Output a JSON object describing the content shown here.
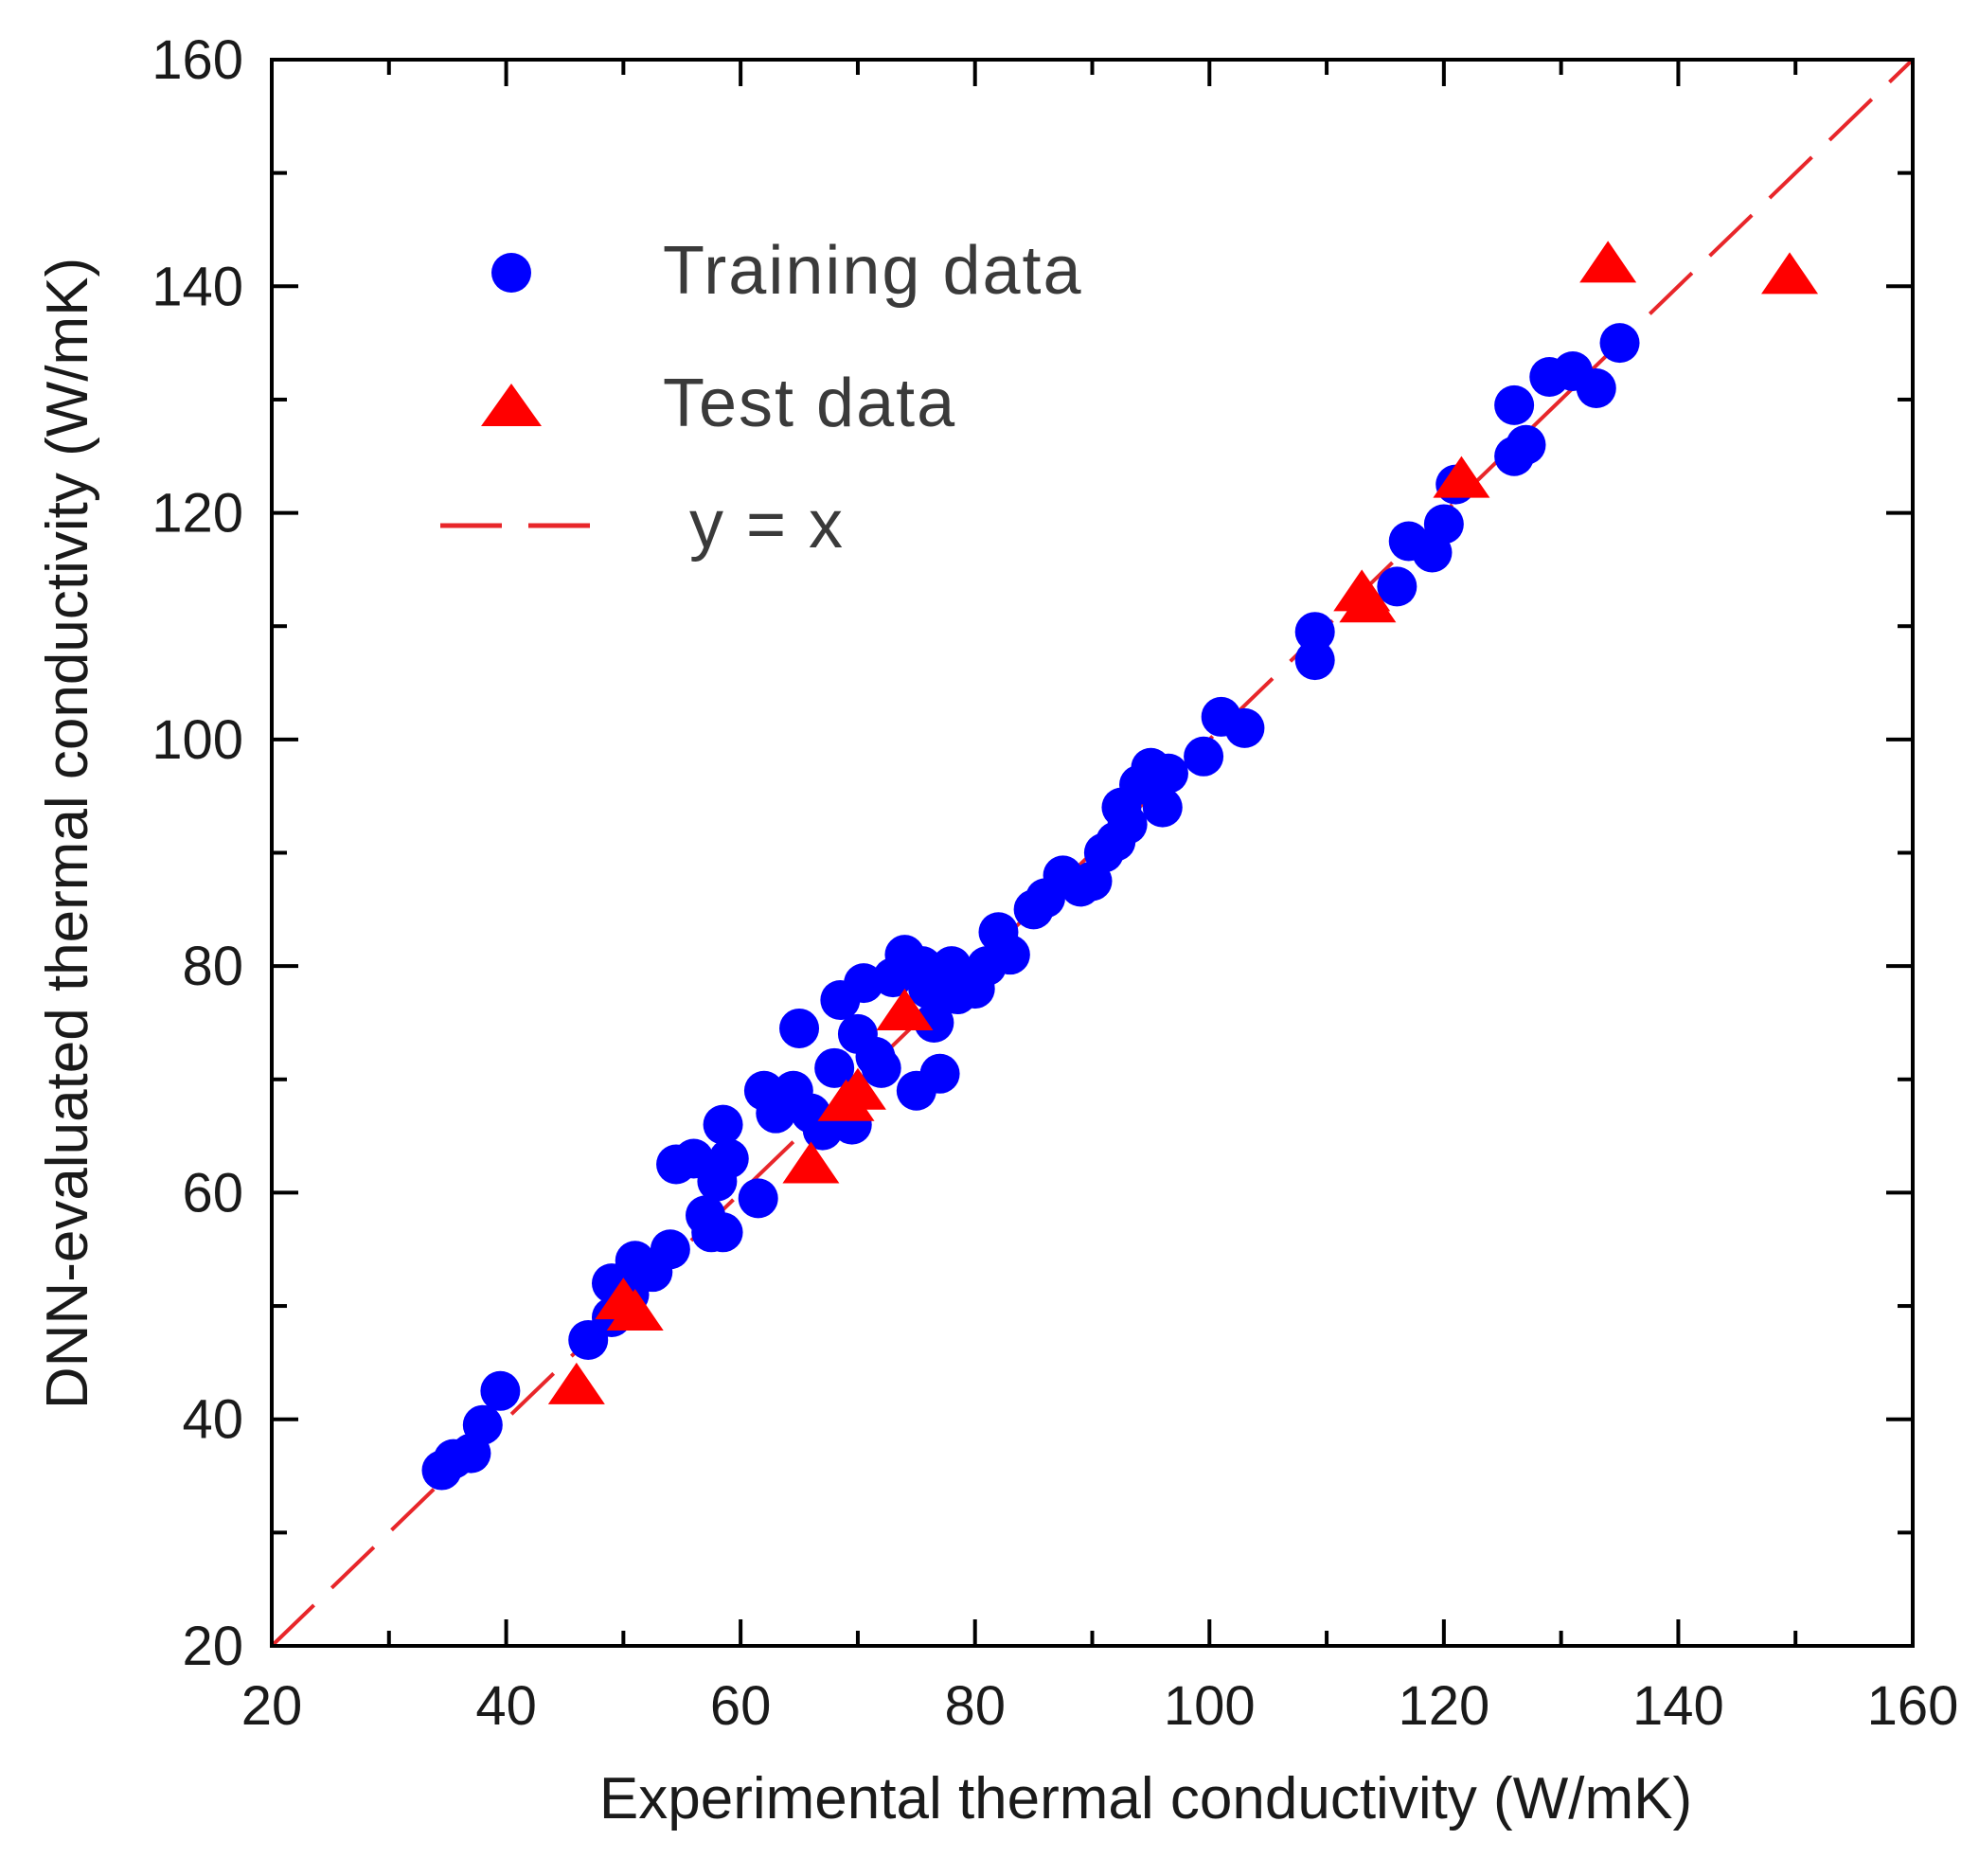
{
  "chart_data": {
    "type": "scatter",
    "xlabel": "Experimental thermal conductivity (W/mK)",
    "ylabel": "DNN-evaluated thermal conductivity (W/mK)",
    "xlim": [
      20,
      160
    ],
    "ylim": [
      20,
      160
    ],
    "x_ticks": [
      "20",
      "40",
      "60",
      "80",
      "100",
      "120",
      "140",
      "160"
    ],
    "y_ticks": [
      "20",
      "40",
      "60",
      "80",
      "100",
      "120",
      "140",
      "160"
    ],
    "grid": false,
    "legend_position": "top-left",
    "colors": {
      "training": "#0000ff",
      "test": "#ff0000",
      "reference": "#e8262a",
      "axis": "#000000"
    },
    "series": [
      {
        "name": "Training data",
        "marker": "circle",
        "points": [
          [
            34.5,
            35.5
          ],
          [
            35.5,
            36.5
          ],
          [
            37,
            37
          ],
          [
            38,
            39.5
          ],
          [
            39.5,
            42.5
          ],
          [
            47,
            47
          ],
          [
            49,
            49
          ],
          [
            49,
            52
          ],
          [
            50.5,
            51
          ],
          [
            51,
            54
          ],
          [
            52.5,
            53
          ],
          [
            54,
            55
          ],
          [
            54.5,
            62.5
          ],
          [
            56,
            63
          ],
          [
            57,
            58
          ],
          [
            57.5,
            56.5
          ],
          [
            58,
            61
          ],
          [
            58.5,
            56.5
          ],
          [
            58.5,
            66
          ],
          [
            59,
            63
          ],
          [
            61.5,
            59.5
          ],
          [
            62,
            69
          ],
          [
            63,
            67
          ],
          [
            64,
            68
          ],
          [
            64.5,
            69
          ],
          [
            65,
            74.5
          ],
          [
            66,
            67
          ],
          [
            67,
            65.5
          ],
          [
            68,
            71
          ],
          [
            68.5,
            77
          ],
          [
            69.5,
            66
          ],
          [
            70,
            74
          ],
          [
            70.5,
            78.5
          ],
          [
            71.5,
            72
          ],
          [
            72,
            71
          ],
          [
            73,
            79
          ],
          [
            74,
            81
          ],
          [
            75,
            69
          ],
          [
            75.5,
            80
          ],
          [
            76,
            78
          ],
          [
            76.5,
            75
          ],
          [
            77,
            70.5
          ],
          [
            78,
            80
          ],
          [
            78.5,
            77.5
          ],
          [
            80,
            78
          ],
          [
            81,
            80
          ],
          [
            82,
            83
          ],
          [
            83,
            81
          ],
          [
            85,
            85
          ],
          [
            86,
            86
          ],
          [
            87.5,
            88
          ],
          [
            89,
            87
          ],
          [
            90,
            87.5
          ],
          [
            91,
            90
          ],
          [
            92,
            91
          ],
          [
            92.5,
            94
          ],
          [
            93,
            92.5
          ],
          [
            94,
            96
          ],
          [
            95,
            97.5
          ],
          [
            96,
            94
          ],
          [
            96.5,
            97
          ],
          [
            99.5,
            98.5
          ],
          [
            101,
            102
          ],
          [
            103,
            101
          ],
          [
            109,
            109.5
          ],
          [
            109,
            107
          ],
          [
            116,
            113.5
          ],
          [
            117,
            117.5
          ],
          [
            119,
            116.5
          ],
          [
            120,
            119
          ],
          [
            121,
            122.5
          ],
          [
            126,
            125
          ],
          [
            126,
            129.5
          ],
          [
            127,
            126
          ],
          [
            129,
            132
          ],
          [
            131,
            132.5
          ],
          [
            133,
            131
          ],
          [
            135,
            135
          ]
        ]
      },
      {
        "name": "Test data",
        "marker": "triangle",
        "points": [
          [
            46,
            43
          ],
          [
            50,
            50.5
          ],
          [
            51,
            49.5
          ],
          [
            66,
            62.5
          ],
          [
            69,
            68
          ],
          [
            70,
            69
          ],
          [
            74,
            76
          ],
          [
            113,
            113
          ],
          [
            113.5,
            112
          ],
          [
            121.5,
            123
          ],
          [
            134,
            142
          ],
          [
            149.5,
            141
          ]
        ]
      },
      {
        "name": "y = x",
        "style": "dashed-line",
        "points": [
          [
            20,
            20
          ],
          [
            160,
            160
          ]
        ]
      }
    ]
  }
}
